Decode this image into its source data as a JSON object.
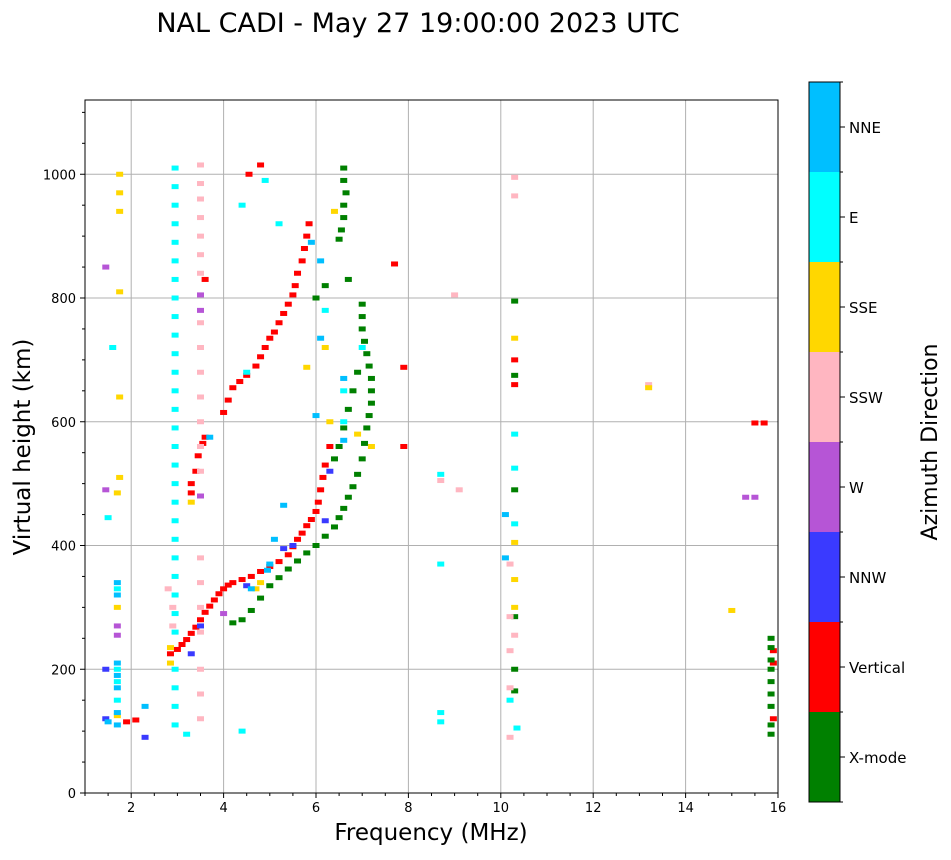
{
  "chart_data": {
    "type": "scatter",
    "title": "NAL CADI - May 27 19:00:00 2023 UTC",
    "xlabel": "Frequency (MHz)",
    "ylabel": "Virtual height (km)",
    "xlim": [
      1,
      16
    ],
    "ylim": [
      0,
      1120
    ],
    "xticks": [
      2,
      4,
      6,
      8,
      10,
      12,
      14,
      16
    ],
    "yticks": [
      0,
      200,
      400,
      600,
      800,
      1000
    ],
    "grid": true,
    "colorbar": {
      "label": "Azimuth Direction",
      "categories": [
        "X-mode",
        "Vertical",
        "NNW",
        "W",
        "SSW",
        "SSE",
        "E",
        "NNE"
      ],
      "colors": [
        "#008000",
        "#ff0000",
        "#3a3aff",
        "#b655d6",
        "#ffb6c1",
        "#ffd700",
        "#00ffff",
        "#00bfff"
      ]
    },
    "series": [
      {
        "name": "Vertical",
        "color": "#ff0000",
        "points": [
          [
            2.85,
            225
          ],
          [
            3.0,
            232
          ],
          [
            3.1,
            240
          ],
          [
            3.2,
            248
          ],
          [
            3.3,
            258
          ],
          [
            3.4,
            268
          ],
          [
            3.5,
            280
          ],
          [
            3.6,
            292
          ],
          [
            3.7,
            302
          ],
          [
            3.8,
            312
          ],
          [
            3.9,
            322
          ],
          [
            4.0,
            330
          ],
          [
            4.1,
            336
          ],
          [
            4.2,
            340
          ],
          [
            4.4,
            345
          ],
          [
            4.6,
            350
          ],
          [
            4.8,
            358
          ],
          [
            5.0,
            366
          ],
          [
            5.2,
            374
          ],
          [
            5.4,
            385
          ],
          [
            5.5,
            398
          ],
          [
            5.6,
            410
          ],
          [
            5.7,
            420
          ],
          [
            5.8,
            432
          ],
          [
            5.9,
            442
          ],
          [
            6.0,
            455
          ],
          [
            6.05,
            470
          ],
          [
            6.1,
            490
          ],
          [
            6.15,
            510
          ],
          [
            6.2,
            530
          ],
          [
            6.3,
            560
          ],
          [
            4.0,
            615
          ],
          [
            4.1,
            635
          ],
          [
            4.2,
            655
          ],
          [
            4.35,
            665
          ],
          [
            4.5,
            675
          ],
          [
            4.7,
            690
          ],
          [
            4.8,
            705
          ],
          [
            4.9,
            720
          ],
          [
            5.0,
            735
          ],
          [
            5.1,
            745
          ],
          [
            5.2,
            760
          ],
          [
            5.3,
            775
          ],
          [
            5.4,
            790
          ],
          [
            5.5,
            805
          ],
          [
            5.55,
            820
          ],
          [
            5.6,
            840
          ],
          [
            5.7,
            860
          ],
          [
            5.75,
            880
          ],
          [
            5.8,
            900
          ],
          [
            5.85,
            920
          ],
          [
            4.8,
            1015
          ],
          [
            4.55,
            1000
          ],
          [
            3.6,
            575
          ],
          [
            3.55,
            565
          ],
          [
            3.45,
            545
          ],
          [
            7.7,
            855
          ],
          [
            7.9,
            688
          ],
          [
            7.9,
            560
          ],
          [
            10.3,
            700
          ],
          [
            10.3,
            660
          ],
          [
            15.5,
            598
          ],
          [
            15.7,
            598
          ],
          [
            15.9,
            230
          ],
          [
            15.9,
            210
          ],
          [
            15.9,
            120
          ],
          [
            1.9,
            115
          ],
          [
            2.1,
            118
          ],
          [
            3.3,
            485
          ],
          [
            3.3,
            500
          ],
          [
            3.4,
            520
          ],
          [
            3.6,
            830
          ]
        ]
      },
      {
        "name": "X-mode",
        "color": "#008000",
        "points": [
          [
            4.2,
            275
          ],
          [
            4.4,
            280
          ],
          [
            4.6,
            295
          ],
          [
            4.8,
            315
          ],
          [
            5.0,
            335
          ],
          [
            5.2,
            348
          ],
          [
            5.4,
            362
          ],
          [
            5.6,
            375
          ],
          [
            5.8,
            388
          ],
          [
            6.0,
            400
          ],
          [
            6.2,
            415
          ],
          [
            6.4,
            430
          ],
          [
            6.5,
            445
          ],
          [
            6.6,
            460
          ],
          [
            6.7,
            478
          ],
          [
            6.8,
            495
          ],
          [
            6.9,
            515
          ],
          [
            7.0,
            540
          ],
          [
            7.05,
            565
          ],
          [
            7.1,
            590
          ],
          [
            7.15,
            610
          ],
          [
            7.2,
            630
          ],
          [
            7.2,
            650
          ],
          [
            7.2,
            670
          ],
          [
            7.15,
            690
          ],
          [
            7.1,
            710
          ],
          [
            7.05,
            730
          ],
          [
            7.0,
            750
          ],
          [
            7.0,
            770
          ],
          [
            7.0,
            790
          ],
          [
            6.9,
            680
          ],
          [
            6.8,
            650
          ],
          [
            6.7,
            620
          ],
          [
            6.6,
            590
          ],
          [
            6.5,
            560
          ],
          [
            6.4,
            540
          ],
          [
            6.6,
            1010
          ],
          [
            6.6,
            990
          ],
          [
            6.65,
            970
          ],
          [
            6.6,
            950
          ],
          [
            6.6,
            930
          ],
          [
            6.55,
            910
          ],
          [
            6.5,
            895
          ],
          [
            6.7,
            830
          ],
          [
            6.2,
            820
          ],
          [
            6.0,
            800
          ],
          [
            10.3,
            795
          ],
          [
            10.3,
            675
          ],
          [
            10.3,
            490
          ],
          [
            10.3,
            285
          ],
          [
            10.3,
            200
          ],
          [
            10.3,
            165
          ],
          [
            15.85,
            250
          ],
          [
            15.85,
            235
          ],
          [
            15.85,
            215
          ],
          [
            15.85,
            200
          ],
          [
            15.85,
            180
          ],
          [
            15.85,
            160
          ],
          [
            15.85,
            140
          ],
          [
            15.85,
            110
          ],
          [
            15.85,
            95
          ]
        ]
      },
      {
        "name": "NNW",
        "color": "#3a3aff",
        "points": [
          [
            5.5,
            400
          ],
          [
            5.3,
            395
          ],
          [
            3.5,
            270
          ],
          [
            4.5,
            335
          ],
          [
            6.2,
            440
          ],
          [
            1.45,
            120
          ],
          [
            1.45,
            200
          ],
          [
            2.3,
            90
          ],
          [
            6.3,
            520
          ],
          [
            3.3,
            225
          ]
        ]
      },
      {
        "name": "W",
        "color": "#b655d6",
        "points": [
          [
            3.5,
            805
          ],
          [
            3.5,
            780
          ],
          [
            3.5,
            480
          ],
          [
            1.7,
            270
          ],
          [
            1.7,
            255
          ],
          [
            15.3,
            478
          ],
          [
            15.5,
            478
          ],
          [
            1.45,
            490
          ],
          [
            1.45,
            850
          ],
          [
            4.0,
            290
          ]
        ]
      },
      {
        "name": "SSW",
        "color": "#ffb6c1",
        "points": [
          [
            3.5,
            1015
          ],
          [
            3.5,
            985
          ],
          [
            3.5,
            960
          ],
          [
            3.5,
            930
          ],
          [
            3.5,
            900
          ],
          [
            3.5,
            870
          ],
          [
            3.5,
            840
          ],
          [
            3.5,
            760
          ],
          [
            3.5,
            720
          ],
          [
            3.5,
            680
          ],
          [
            3.5,
            640
          ],
          [
            3.5,
            600
          ],
          [
            3.5,
            560
          ],
          [
            3.5,
            520
          ],
          [
            3.5,
            380
          ],
          [
            3.5,
            340
          ],
          [
            3.5,
            300
          ],
          [
            3.5,
            260
          ],
          [
            3.5,
            200
          ],
          [
            3.5,
            160
          ],
          [
            3.5,
            120
          ],
          [
            8.7,
            505
          ],
          [
            9.1,
            490
          ],
          [
            9.0,
            805
          ],
          [
            10.2,
            370
          ],
          [
            10.2,
            285
          ],
          [
            10.2,
            230
          ],
          [
            10.2,
            170
          ],
          [
            10.3,
            995
          ],
          [
            10.3,
            965
          ],
          [
            10.3,
            255
          ],
          [
            10.2,
            90
          ],
          [
            13.2,
            660
          ],
          [
            2.9,
            300
          ],
          [
            2.9,
            270
          ],
          [
            2.8,
            330
          ]
        ]
      },
      {
        "name": "SSE",
        "color": "#ffd700",
        "points": [
          [
            6.4,
            940
          ],
          [
            6.3,
            600
          ],
          [
            6.2,
            720
          ],
          [
            5.8,
            688
          ],
          [
            6.9,
            580
          ],
          [
            7.2,
            560
          ],
          [
            4.7,
            330
          ],
          [
            4.8,
            340
          ],
          [
            2.85,
            210
          ],
          [
            2.85,
            235
          ],
          [
            1.75,
            810
          ],
          [
            1.75,
            640
          ],
          [
            1.75,
            510
          ],
          [
            1.7,
            485
          ],
          [
            1.7,
            300
          ],
          [
            1.7,
            125
          ],
          [
            1.75,
            1000
          ],
          [
            1.75,
            970
          ],
          [
            1.75,
            940
          ],
          [
            10.3,
            735
          ],
          [
            10.3,
            405
          ],
          [
            10.3,
            345
          ],
          [
            10.3,
            300
          ],
          [
            15.0,
            295
          ],
          [
            13.2,
            655
          ],
          [
            3.3,
            470
          ]
        ]
      },
      {
        "name": "E",
        "color": "#00ffff",
        "points": [
          [
            2.95,
            1010
          ],
          [
            2.95,
            980
          ],
          [
            2.95,
            950
          ],
          [
            2.95,
            920
          ],
          [
            2.95,
            890
          ],
          [
            2.95,
            860
          ],
          [
            2.95,
            830
          ],
          [
            2.95,
            800
          ],
          [
            2.95,
            770
          ],
          [
            2.95,
            740
          ],
          [
            2.95,
            710
          ],
          [
            2.95,
            680
          ],
          [
            2.95,
            650
          ],
          [
            2.95,
            620
          ],
          [
            2.95,
            590
          ],
          [
            2.95,
            560
          ],
          [
            2.95,
            530
          ],
          [
            2.95,
            500
          ],
          [
            2.95,
            470
          ],
          [
            2.95,
            440
          ],
          [
            2.95,
            410
          ],
          [
            2.95,
            380
          ],
          [
            2.95,
            350
          ],
          [
            2.95,
            320
          ],
          [
            2.95,
            290
          ],
          [
            2.95,
            260
          ],
          [
            2.95,
            200
          ],
          [
            2.95,
            170
          ],
          [
            2.95,
            140
          ],
          [
            2.95,
            110
          ],
          [
            4.4,
            100
          ],
          [
            4.4,
            950
          ],
          [
            4.9,
            990
          ],
          [
            5.2,
            920
          ],
          [
            6.2,
            780
          ],
          [
            6.6,
            600
          ],
          [
            8.7,
            515
          ],
          [
            8.7,
            370
          ],
          [
            8.7,
            130
          ],
          [
            8.7,
            115
          ],
          [
            10.3,
            580
          ],
          [
            10.3,
            525
          ],
          [
            10.3,
            435
          ],
          [
            10.2,
            150
          ],
          [
            10.35,
            105
          ],
          [
            1.7,
            200
          ],
          [
            1.7,
            180
          ],
          [
            1.7,
            150
          ],
          [
            1.7,
            330
          ],
          [
            1.6,
            720
          ],
          [
            1.5,
            445
          ],
          [
            3.2,
            95
          ],
          [
            4.5,
            680
          ],
          [
            6.6,
            650
          ],
          [
            7.0,
            720
          ]
        ]
      },
      {
        "name": "NNE",
        "color": "#00bfff",
        "points": [
          [
            1.7,
            340
          ],
          [
            1.7,
            320
          ],
          [
            1.7,
            210
          ],
          [
            1.7,
            190
          ],
          [
            1.7,
            170
          ],
          [
            1.7,
            130
          ],
          [
            1.7,
            110
          ],
          [
            1.5,
            115
          ],
          [
            5.9,
            890
          ],
          [
            6.1,
            860
          ],
          [
            6.6,
            570
          ],
          [
            6.6,
            670
          ],
          [
            6.0,
            610
          ],
          [
            5.0,
            370
          ],
          [
            4.95,
            360
          ],
          [
            5.1,
            410
          ],
          [
            4.6,
            330
          ],
          [
            3.7,
            575
          ],
          [
            10.1,
            450
          ],
          [
            10.1,
            380
          ],
          [
            6.1,
            735
          ],
          [
            5.3,
            465
          ],
          [
            2.3,
            140
          ]
        ]
      }
    ]
  }
}
